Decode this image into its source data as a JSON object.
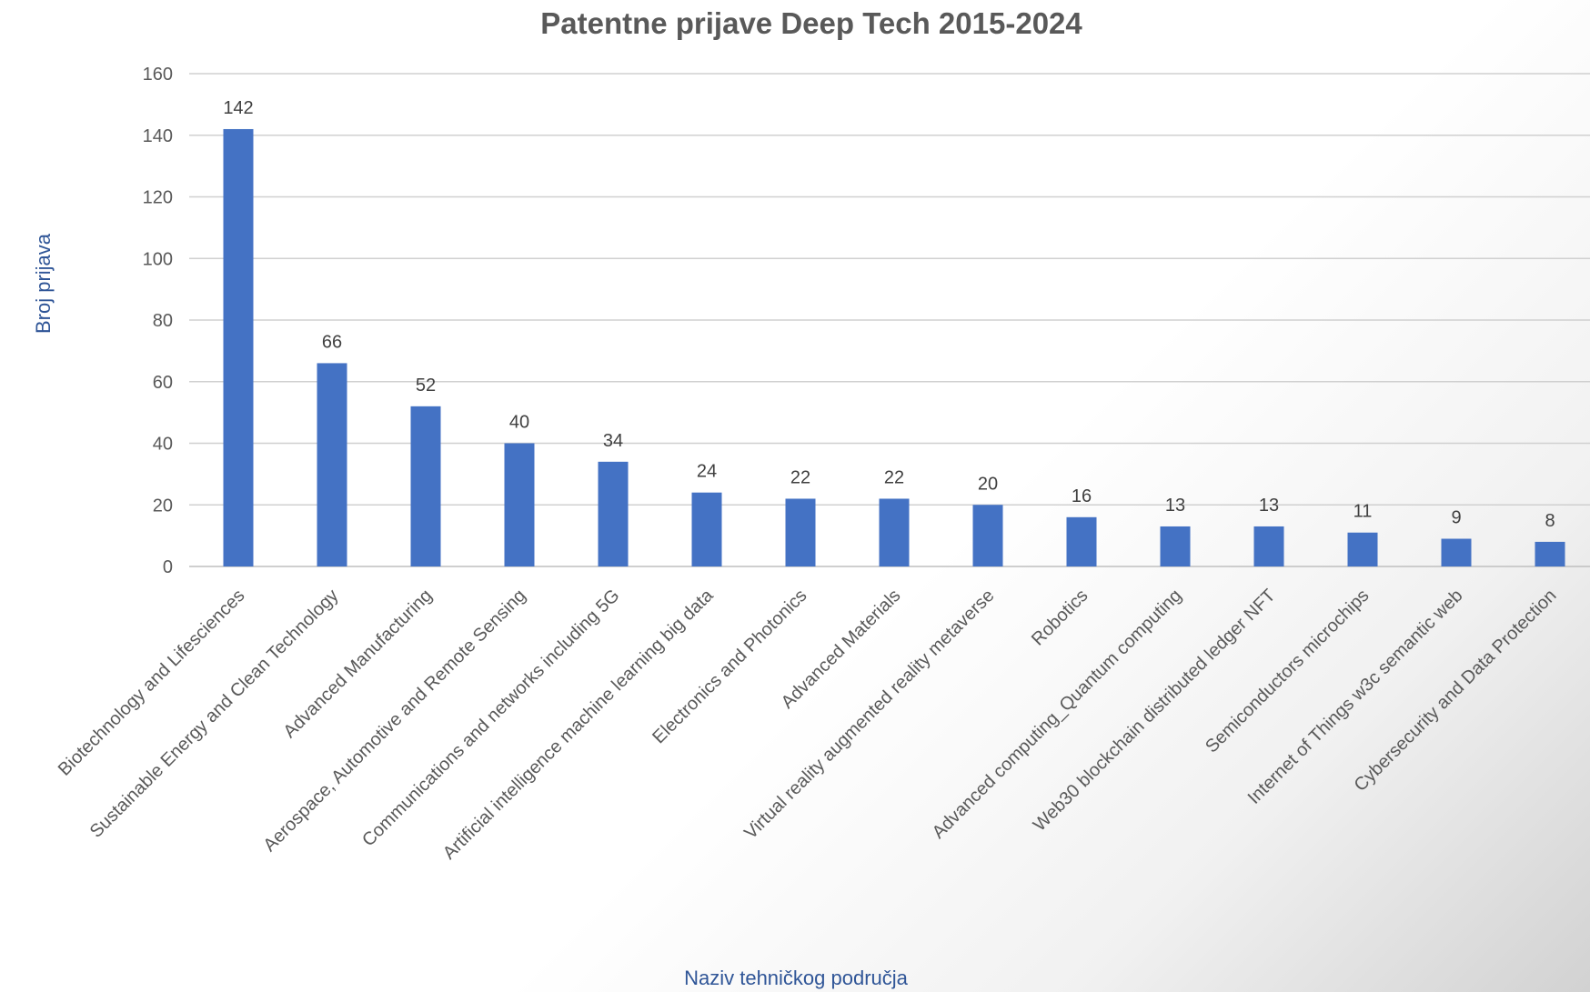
{
  "chart_data": {
    "type": "bar",
    "title": "Patentne prijave Deep Tech 2015-2024",
    "xlabel": "Naziv tehničkog područja",
    "ylabel": "Broj prijava",
    "ylim": [
      0,
      160
    ],
    "yticks": [
      0,
      20,
      40,
      60,
      80,
      100,
      120,
      140,
      160
    ],
    "grid": true,
    "legend": "none",
    "categories": [
      "Biotechnology and Lifesciences",
      "Sustainable Energy and Clean Technology",
      "Advanced Manufacturing",
      "Aerospace, Automotive and Remote Sensing",
      "Communications and networks including 5G",
      "Artificial intelligence machine learning big data",
      "Electronics and Photonics",
      "Advanced Materials",
      "Virtual reality augmented reality metaverse",
      "Robotics",
      "Advanced computing_Quantum computing",
      "Web30 blockchain distributed ledger NFT",
      "Semiconductors microchips",
      "Internet of Things w3c semantic web",
      "Cybersecurity and Data Protection"
    ],
    "values": [
      142,
      66,
      52,
      40,
      34,
      24,
      22,
      22,
      20,
      16,
      13,
      13,
      11,
      9,
      8
    ],
    "data_labels": true,
    "colors": {
      "bar": "#4472c4",
      "title": "#595959",
      "axis_title": "#2f5597",
      "tick": "#595959",
      "gridline": "#d0d0d0"
    }
  }
}
